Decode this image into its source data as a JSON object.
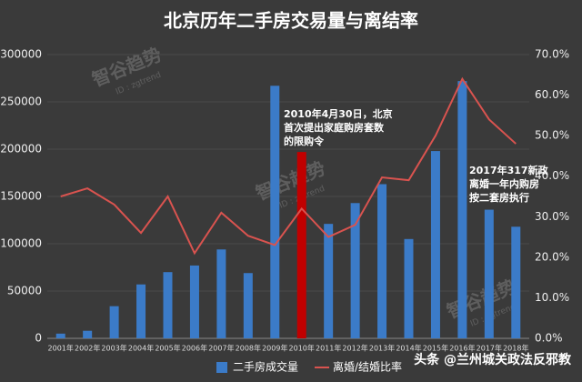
{
  "chart_data": {
    "type": "bar",
    "title": "北京历年二手房交易量与离结率",
    "categories": [
      "2001年",
      "2002年",
      "2003年",
      "2004年",
      "2005年",
      "2006年",
      "2007年",
      "2008年",
      "2009年",
      "2010年",
      "2011年",
      "2012年",
      "2013年",
      "2014年",
      "2015年",
      "2016年",
      "2017年",
      "2018年"
    ],
    "series": [
      {
        "name": "二手房成交量",
        "type": "bar",
        "color": "#3b7bc8",
        "colors": [
          "#3b7bc8",
          "#3b7bc8",
          "#3b7bc8",
          "#3b7bc8",
          "#3b7bc8",
          "#3b7bc8",
          "#3b7bc8",
          "#3b7bc8",
          "#3b7bc8",
          "#c00000",
          "#3b7bc8",
          "#3b7bc8",
          "#3b7bc8",
          "#3b7bc8",
          "#3b7bc8",
          "#3b7bc8",
          "#3b7bc8",
          "#3b7bc8"
        ],
        "values": [
          5000,
          8000,
          34000,
          57000,
          70000,
          77000,
          94000,
          69000,
          267000,
          197000,
          121000,
          143000,
          163000,
          105000,
          198000,
          272000,
          136000,
          118000
        ]
      },
      {
        "name": "离婚/结婚比率",
        "type": "line",
        "axis": "y2",
        "color": "#d9534f",
        "values": [
          35,
          37,
          33,
          26,
          35,
          21,
          31,
          25.3,
          23,
          32,
          25,
          28,
          39.7,
          39,
          50,
          64,
          54,
          48
        ]
      }
    ],
    "ylim": [
      0,
      300000
    ],
    "yticks": [
      0,
      50000,
      100000,
      150000,
      200000,
      250000,
      300000
    ],
    "y2lim": [
      0,
      70
    ],
    "y2ticks": [
      {
        "value": 0,
        "label": "0.0%"
      },
      {
        "value": 10,
        "label": "10.0%"
      },
      {
        "value": 20,
        "label": "20.0%"
      },
      {
        "value": 30,
        "label": "30.0%"
      },
      {
        "value": 40,
        "label": "40.0%"
      },
      {
        "value": 50,
        "label": "50.0%"
      },
      {
        "value": 60,
        "label": "60.0%"
      },
      {
        "value": 70,
        "label": "70.0%"
      }
    ],
    "grid": true,
    "legend": "bottom",
    "annotations": [
      {
        "lines": [
          "2010年4月30日，北京",
          "首次提出家庭购房套数",
          "的限购令"
        ]
      },
      {
        "lines": [
          "2017年317新政",
          "离婚一年内购房",
          "按二套房执行"
        ]
      }
    ],
    "watermark": {
      "text": "智谷趋势",
      "id": "ID : zgtrend"
    },
    "footer": "头条 @兰州城关政法反邪教"
  }
}
